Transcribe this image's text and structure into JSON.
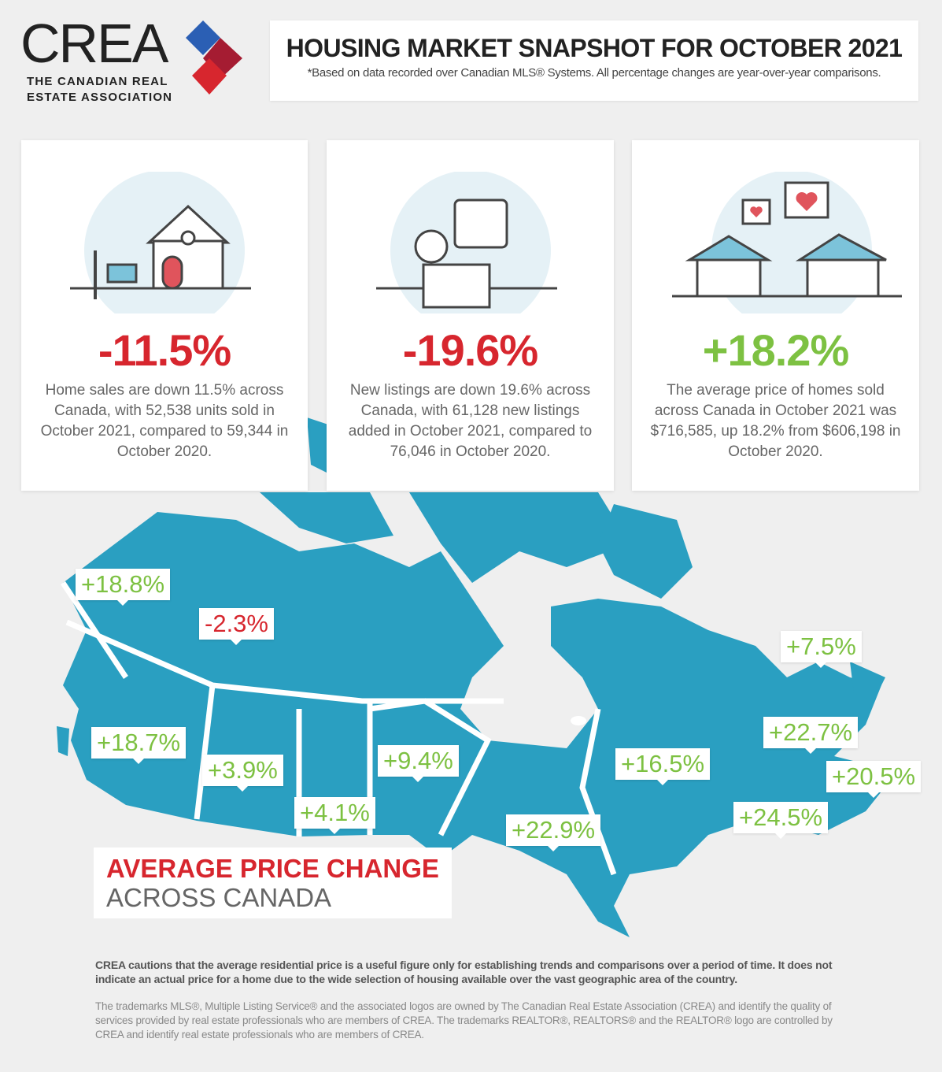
{
  "logo": {
    "word": "CREA",
    "sub_line1": "THE CANADIAN REAL",
    "sub_line2": "ESTATE ASSOCIATION"
  },
  "header": {
    "title": "HOUSING MARKET SNAPSHOT FOR OCTOBER 2021",
    "subtitle": "*Based on data recorded over Canadian MLS® Systems. All percentage changes are year-over-year comparisons."
  },
  "cards": [
    {
      "icon": "house-for-sale-icon",
      "value": "-11.5%",
      "desc": "Home sales are down 11.5% across Canada, with 52,538 units sold in October 2021, compared to 59,344 in October 2020."
    },
    {
      "icon": "person-computer-listing-icon",
      "value": "-19.6%",
      "desc": "New listings are down 19.6% across Canada, with 61,128 new listings added in October 2021, compared to 76,046 in October 2020."
    },
    {
      "icon": "neighbourhood-hearts-icon",
      "value": "+18.2%",
      "desc": "The average price of homes sold across Canada in October 2021 was $716,585, up 18.2% from $606,198 in October 2020."
    }
  ],
  "map": {
    "title_line1": "AVERAGE PRICE CHANGE",
    "title_line2": "ACROSS CANADA",
    "labels": [
      {
        "region": "Yukon",
        "value": "+18.8%"
      },
      {
        "region": "Northwest Territories",
        "value": "-2.3%"
      },
      {
        "region": "British Columbia",
        "value": "+18.7%"
      },
      {
        "region": "Alberta",
        "value": "+3.9%"
      },
      {
        "region": "Saskatchewan",
        "value": "+4.1%"
      },
      {
        "region": "Manitoba",
        "value": "+9.4%"
      },
      {
        "region": "Ontario",
        "value": "+22.9%"
      },
      {
        "region": "Quebec",
        "value": "+16.5%"
      },
      {
        "region": "Newfoundland and Labrador",
        "value": "+7.5%"
      },
      {
        "region": "Prince Edward Island",
        "value": "+22.7%"
      },
      {
        "region": "Nova Scotia",
        "value": "+20.5%"
      },
      {
        "region": "New Brunswick",
        "value": "+24.5%"
      }
    ]
  },
  "footer": {
    "caution": "CREA cautions that the average residential price is a useful figure only for establishing trends and comparisons over a period of time. It does not indicate an actual price for a home due to the wide selection of housing available over the vast geographic area of the country.",
    "trademarks": "The trademarks MLS®, Multiple Listing Service® and the associated logos are owned by The Canadian Real Estate Association (CREA) and identify the quality of services provided by real estate professionals who are members of CREA. The trademarks REALTOR®, REALTORS® and the REALTOR® logo are controlled by CREA and identify real estate professionals who are members of CREA."
  },
  "colors": {
    "negative": "#d7262e",
    "positive": "#7dc142",
    "map": "#2a9fc1",
    "background": "#efefef"
  }
}
